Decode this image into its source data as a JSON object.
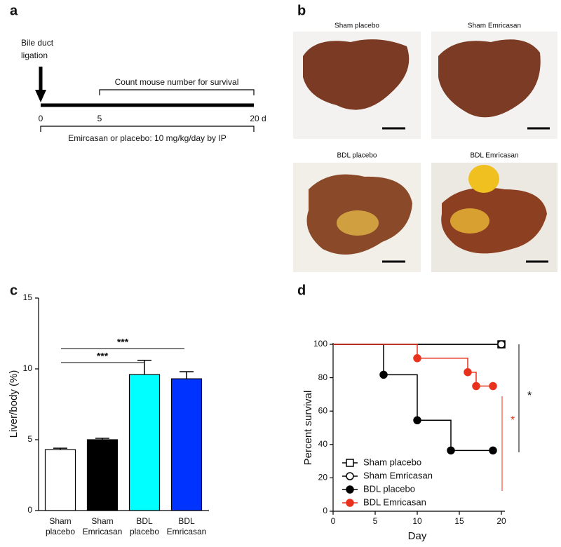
{
  "panels": {
    "a": {
      "label": "a",
      "event_lines": [
        "Bile duct",
        "ligation"
      ],
      "survival_label": "Count mouse number for survival",
      "timeline_labels": [
        "0",
        "5",
        "20 d"
      ],
      "treatment_label": "Emircasan or placebo: 10 mg/kg/day by IP"
    },
    "b": {
      "label": "b",
      "photos": [
        "Sham placebo",
        "Sham Emricasan",
        "BDL placebo",
        "BDL Emricasan"
      ]
    }
  },
  "chart_data": [
    {
      "type": "bar",
      "panel_label": "c",
      "ylabel": "Liver/body (%)",
      "categories": [
        "Sham placebo",
        "Sham Emricasan",
        "BDL placebo",
        "BDL Emricasan"
      ],
      "values": [
        4.3,
        5.0,
        9.6,
        9.3
      ],
      "errors": [
        0.1,
        0.1,
        1.0,
        0.5
      ],
      "colors": [
        "#ffffff",
        "#000000",
        "#00ffff",
        "#0033ff"
      ],
      "ylim": [
        0,
        15
      ],
      "yticks": [
        0,
        5,
        10,
        15
      ],
      "annotations": [
        {
          "text": "***"
        },
        {
          "text": "***"
        }
      ]
    },
    {
      "type": "line",
      "panel_label": "d",
      "xlabel": "Day",
      "ylabel": "Percent survival",
      "xlim": [
        0,
        20
      ],
      "ylim": [
        0,
        100
      ],
      "xticks": [
        0,
        5,
        10,
        15,
        20
      ],
      "yticks": [
        0,
        20,
        40,
        60,
        80,
        100
      ],
      "step": true,
      "legend": "lower left",
      "series": [
        {
          "name": "Sham placebo",
          "color": "#000000",
          "marker": "square",
          "fill": "open",
          "x": [
            0,
            20
          ],
          "values": [
            100,
            100
          ]
        },
        {
          "name": "Sham Emricasan",
          "color": "#000000",
          "marker": "circle",
          "fill": "open",
          "x": [
            0,
            20
          ],
          "values": [
            100,
            100
          ]
        },
        {
          "name": "BDL placebo",
          "color": "#000000",
          "marker": "circle",
          "fill": "filled",
          "x": [
            0,
            6,
            10,
            14,
            19
          ],
          "values": [
            100,
            81.8,
            54.5,
            36.4,
            36.4
          ]
        },
        {
          "name": "BDL Emricasan",
          "color": "#e8321e",
          "marker": "circle",
          "fill": "filled",
          "x": [
            0,
            10,
            16,
            17,
            19
          ],
          "values": [
            100,
            91.7,
            83.3,
            75,
            75
          ]
        }
      ],
      "annotations": [
        {
          "text": "*",
          "color": "#000000"
        },
        {
          "text": "*",
          "color": "#e8321e"
        }
      ]
    }
  ]
}
